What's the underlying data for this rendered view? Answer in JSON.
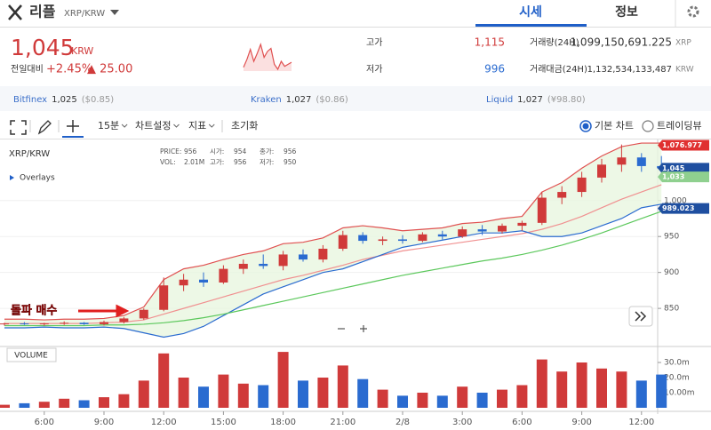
{
  "header": {
    "coin": "리플",
    "pair": "XRP/KRW",
    "tabs": [
      "시세",
      "정보"
    ]
  },
  "price": {
    "value": "1,045",
    "unit": "KRW",
    "change_label": "전일대비",
    "change_pct": "+2.45%",
    "change_abs": "▲ 25.00"
  },
  "sparkline": {
    "values": [
      852,
      860,
      870,
      858,
      866,
      875,
      862,
      868,
      871,
      855,
      850,
      858,
      853,
      855,
      857
    ]
  },
  "stats": [
    {
      "label": "고가",
      "value": "1,115",
      "color": "#d03a3a"
    },
    {
      "label": "저가",
      "value": "996",
      "color": "#2a6bd0"
    },
    {
      "label": "거래량(24H)",
      "value": "1,099,150,691.225",
      "unit": "XRP"
    },
    {
      "label": "거래대금(24H)",
      "value": "1,132,534,133,487",
      "unit": "KRW"
    }
  ],
  "exchanges": [
    {
      "name": "Bitfinex",
      "price": "1,025",
      "note": "($0.85)"
    },
    {
      "name": "Kraken",
      "price": "1,027",
      "note": "($0.86)"
    },
    {
      "name": "Liquid",
      "price": "1,027",
      "note": "(¥98.80)"
    }
  ],
  "toolbar": {
    "items": [
      "15분",
      "차트설정",
      "지표",
      "초기화"
    ],
    "modes": [
      "기본 차트",
      "트레이딩뷰"
    ]
  },
  "chart": {
    "type": "candlestick",
    "symbol": "XRP/KRW",
    "overlays": "Overlays",
    "volume_label": "VOLUME",
    "annotation": "돌파 매수",
    "info": [
      {
        "label": "PRICE:",
        "value": "956"
      },
      {
        "label": "시가:",
        "value": "954"
      },
      {
        "label": "종가:",
        "value": "956"
      },
      {
        "label": "VOL:",
        "value": "2.01M"
      },
      {
        "label": "고가:",
        "value": "956"
      },
      {
        "label": "저가:",
        "value": "950"
      }
    ],
    "ylim": [
      797,
      1085
    ],
    "yticks": [
      850,
      900,
      950,
      {
        "value": 1000,
        "label": "1,000"
      }
    ],
    "vlim": [
      0,
      40
    ],
    "vticks": [
      {
        "value": 30,
        "label": "30.0m"
      },
      {
        "value": 20,
        "label": "20.0m"
      },
      {
        "value": 10,
        "label": "10.00m"
      }
    ],
    "xticks": [
      {
        "value": 2,
        "label": "6:00"
      },
      {
        "value": 5,
        "label": "9:00"
      },
      {
        "value": 8,
        "label": "12:00"
      },
      {
        "value": 11,
        "label": "15:00"
      },
      {
        "value": 14,
        "label": "18:00"
      },
      {
        "value": 17,
        "label": "21:00"
      },
      {
        "value": 20,
        "label": "2/8"
      },
      {
        "value": 23,
        "label": "3:00"
      },
      {
        "value": 26,
        "label": "6:00"
      },
      {
        "value": 29,
        "label": "9:00"
      },
      {
        "value": 32,
        "label": "12:00"
      }
    ],
    "up_color": "#d03a3a",
    "down_color": "#2a6bd0",
    "candles": [
      {
        "open": 828,
        "high": 830,
        "low": 826,
        "close": 829,
        "volume": 2
      },
      {
        "open": 829,
        "high": 831,
        "low": 827,
        "close": 828,
        "volume": 3
      },
      {
        "open": 828,
        "high": 830,
        "low": 826,
        "close": 829,
        "volume": 4
      },
      {
        "open": 829,
        "high": 832,
        "low": 827,
        "close": 830,
        "volume": 6
      },
      {
        "open": 830,
        "high": 831,
        "low": 827,
        "close": 828,
        "volume": 5
      },
      {
        "open": 828,
        "high": 833,
        "low": 826,
        "close": 831,
        "volume": 7
      },
      {
        "open": 831,
        "high": 838,
        "low": 829,
        "close": 836,
        "volume": 9
      },
      {
        "open": 836,
        "high": 850,
        "low": 834,
        "close": 848,
        "volume": 18
      },
      {
        "open": 848,
        "high": 893,
        "low": 846,
        "close": 882,
        "volume": 36
      },
      {
        "open": 882,
        "high": 898,
        "low": 874,
        "close": 890,
        "volume": 20
      },
      {
        "open": 890,
        "high": 900,
        "low": 880,
        "close": 886,
        "volume": 14
      },
      {
        "open": 886,
        "high": 910,
        "low": 884,
        "close": 905,
        "volume": 22
      },
      {
        "open": 905,
        "high": 918,
        "low": 898,
        "close": 912,
        "volume": 16
      },
      {
        "open": 912,
        "high": 925,
        "low": 905,
        "close": 909,
        "volume": 15
      },
      {
        "open": 909,
        "high": 930,
        "low": 903,
        "close": 925,
        "volume": 37
      },
      {
        "open": 925,
        "high": 932,
        "low": 915,
        "close": 918,
        "volume": 18
      },
      {
        "open": 918,
        "high": 938,
        "low": 914,
        "close": 933,
        "volume": 20
      },
      {
        "open": 933,
        "high": 958,
        "low": 930,
        "close": 952,
        "volume": 28
      },
      {
        "open": 952,
        "high": 956,
        "low": 940,
        "close": 944,
        "volume": 19
      },
      {
        "open": 944,
        "high": 950,
        "low": 938,
        "close": 946,
        "volume": 12
      },
      {
        "open": 946,
        "high": 952,
        "low": 940,
        "close": 944,
        "volume": 8
      },
      {
        "open": 944,
        "high": 956,
        "low": 942,
        "close": 953,
        "volume": 10
      },
      {
        "open": 953,
        "high": 958,
        "low": 946,
        "close": 950,
        "volume": 8
      },
      {
        "open": 950,
        "high": 964,
        "low": 948,
        "close": 960,
        "volume": 14
      },
      {
        "open": 960,
        "high": 966,
        "low": 952,
        "close": 957,
        "volume": 10
      },
      {
        "open": 957,
        "high": 968,
        "low": 954,
        "close": 965,
        "volume": 12
      },
      {
        "open": 965,
        "high": 972,
        "low": 958,
        "close": 969,
        "volume": 15
      },
      {
        "open": 969,
        "high": 1012,
        "low": 966,
        "close": 1004,
        "volume": 32
      },
      {
        "open": 1004,
        "high": 1020,
        "low": 995,
        "close": 1012,
        "volume": 24
      },
      {
        "open": 1012,
        "high": 1040,
        "low": 1005,
        "close": 1032,
        "volume": 30
      },
      {
        "open": 1032,
        "high": 1058,
        "low": 1025,
        "close": 1050,
        "volume": 26
      },
      {
        "open": 1050,
        "high": 1078,
        "low": 1040,
        "close": 1060,
        "volume": 24
      },
      {
        "open": 1060,
        "high": 1066,
        "low": 1040,
        "close": 1048,
        "volume": 18
      },
      {
        "open": 1048,
        "high": 1062,
        "low": 1040,
        "close": 1045,
        "volume": 22
      }
    ],
    "bands": [
      {
        "color": "#e05050",
        "values": [
          835,
          835,
          834,
          835,
          835,
          836,
          840,
          852,
          890,
          905,
          910,
          918,
          925,
          930,
          940,
          942,
          948,
          962,
          965,
          962,
          958,
          960,
          962,
          968,
          970,
          975,
          978,
          1012,
          1025,
          1045,
          1062,
          1075,
          1080,
          1080
        ]
      },
      {
        "color": "#f09090",
        "values": [
          829,
          829,
          829,
          829,
          829,
          830,
          831,
          834,
          842,
          850,
          858,
          866,
          874,
          882,
          890,
          896,
          903,
          910,
          918,
          924,
          930,
          934,
          938,
          942,
          946,
          950,
          954,
          960,
          968,
          978,
          990,
          1002,
          1012,
          1022
        ]
      },
      {
        "color": "#2a6bd0",
        "values": [
          823,
          823,
          824,
          823,
          823,
          824,
          822,
          816,
          810,
          815,
          825,
          840,
          855,
          870,
          880,
          890,
          900,
          905,
          915,
          925,
          935,
          940,
          945,
          950,
          955,
          955,
          958,
          950,
          950,
          955,
          965,
          975,
          990,
          995
        ]
      },
      {
        "color": "#5cc85c",
        "values": [
          826,
          826,
          826,
          826,
          826,
          827,
          827,
          828,
          830,
          833,
          837,
          842,
          848,
          854,
          860,
          866,
          872,
          878,
          884,
          890,
          896,
          901,
          906,
          911,
          916,
          920,
          925,
          931,
          938,
          946,
          955,
          965,
          975,
          985
        ]
      }
    ],
    "price_tags": [
      {
        "value": 1076.977,
        "label": "1,076.977",
        "color": "#e03030"
      },
      {
        "value": 1045,
        "label": "1,045",
        "color": "#1f4fa0"
      },
      {
        "value": 1033,
        "label": "1,033",
        "color": "#8fd08f"
      },
      {
        "value": 989.023,
        "label": "989.023",
        "color": "#1f4fa0"
      }
    ]
  }
}
